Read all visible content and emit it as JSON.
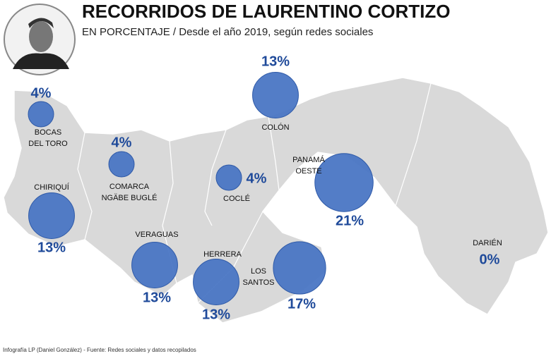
{
  "header": {
    "title": "RECORRIDOS DE LAURENTINO CORTIZO",
    "subtitle": "EN PORCENTAJE / Desde el año 2019, según redes sociales"
  },
  "regions": [
    {
      "name": [
        "BOCAS",
        "DEL TORO"
      ],
      "value": 4,
      "value_label": "4%"
    },
    {
      "name": [
        "COMARCA",
        "NGÄBE BUGLÉ"
      ],
      "value": 4,
      "value_label": "4%"
    },
    {
      "name": [
        "CHIRIQUÍ"
      ],
      "value": 13,
      "value_label": "13%"
    },
    {
      "name": [
        "VERAGUAS"
      ],
      "value": 13,
      "value_label": "13%"
    },
    {
      "name": [
        "HERRERA"
      ],
      "value": 13,
      "value_label": "13%"
    },
    {
      "name": [
        "LOS",
        "SANTOS"
      ],
      "value": 17,
      "value_label": "17%"
    },
    {
      "name": [
        "COCLÉ"
      ],
      "value": 4,
      "value_label": "4%"
    },
    {
      "name": [
        "COLÓN"
      ],
      "value": 13,
      "value_label": "13%"
    },
    {
      "name": [
        "PANAMÁ",
        "OESTE"
      ],
      "value": 21,
      "value_label": "21%"
    },
    {
      "name": [
        "DARIÉN"
      ],
      "value": 0,
      "value_label": "0%"
    }
  ],
  "footer": "Infografía LP (Daniel González) - Fuente: Redes sociales y datos recopilados"
}
